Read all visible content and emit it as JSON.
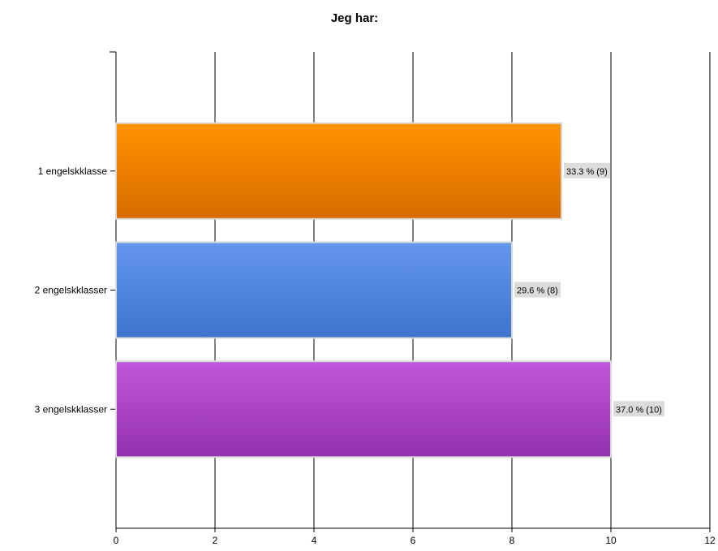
{
  "chart_data": {
    "type": "bar",
    "orientation": "horizontal",
    "title": "Jeg har:",
    "xlabel": "",
    "ylabel": "",
    "categories": [
      "1 engelskklasse",
      "2 engelskklasser",
      "3 engelskklasser"
    ],
    "values": [
      9,
      8,
      10
    ],
    "data_labels": [
      "33.3 % (9)",
      "29.6 % (8)",
      "37.0 % (10)"
    ],
    "colors": [
      "#ee7a00",
      "#4f82dd",
      "#a83fc3"
    ],
    "color_stops": [
      [
        "#ff9400",
        "#d96b00"
      ],
      [
        "#6597ee",
        "#3f74cc"
      ],
      [
        "#c057dc",
        "#9530b0"
      ]
    ],
    "xlim": [
      0,
      12
    ],
    "xticks": [
      0,
      2,
      4,
      6,
      8,
      10,
      12
    ],
    "xtick_labels": [
      "0",
      "2",
      "4",
      "6",
      "8",
      "10",
      "12"
    ],
    "grid": true,
    "legend": "none"
  }
}
